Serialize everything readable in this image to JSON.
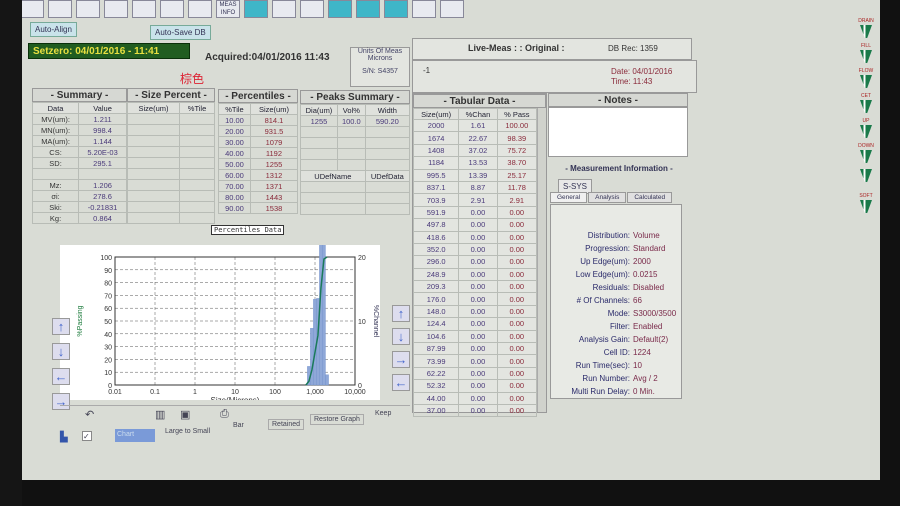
{
  "toolbar": {
    "icons": [
      "grid-icon",
      "list-icon",
      "list2-icon",
      "histogram-icon",
      "table-icon",
      "report-icon",
      "graph-icon",
      "meas-info-icon",
      "window-icon",
      "curve-icon",
      "setzero-icon",
      "sample-icon",
      "plus-minus-icon",
      "stat-icon",
      "disabled-icon",
      "print-icon"
    ],
    "meas_info_label": "MEAS INFO"
  },
  "buttons": {
    "auto_align": "Auto-Align",
    "auto_save": "Auto-Save DB"
  },
  "header": {
    "setzero": "Setzero: 04/01/2016 - 11:41",
    "acquired": "Acquired:04/01/2016  11:43",
    "units_label": "Units Of Meas",
    "units_value": "Microns",
    "sn": "S/N: S4357",
    "sample_title": "棕色",
    "live_meas": "Live-Meas : : Original :",
    "db_rec": "DB Rec: 1359",
    "run_id": "-1",
    "date": "Date: 04/01/2016",
    "time": "Time: 11:43"
  },
  "summary": {
    "title": "- Summary -",
    "cols": [
      "Data",
      "Value"
    ],
    "rows": [
      [
        "MV(um):",
        "1.211"
      ],
      [
        "MN(um):",
        "998.4"
      ],
      [
        "MA(um):",
        "1.144"
      ],
      [
        "CS:",
        "5.20E-03"
      ],
      [
        "SD:",
        "295.1"
      ],
      [
        "",
        ""
      ],
      [
        "Mz:",
        "1.206"
      ],
      [
        "σi:",
        "278.6"
      ],
      [
        "Ski:",
        "-0.21831"
      ],
      [
        "Kg:",
        "0.864"
      ]
    ]
  },
  "size_percent": {
    "title": "- Size Percent -",
    "cols": [
      "Size(um)",
      "%Tile"
    ]
  },
  "percentiles": {
    "title": "- Percentiles -",
    "cols": [
      "%Tile",
      "Size(um)"
    ],
    "rows": [
      [
        "10.00",
        "814.1"
      ],
      [
        "20.00",
        "931.5"
      ],
      [
        "30.00",
        "1079"
      ],
      [
        "40.00",
        "1192"
      ],
      [
        "50.00",
        "1255"
      ],
      [
        "60.00",
        "1312"
      ],
      [
        "70.00",
        "1371"
      ],
      [
        "80.00",
        "1443"
      ],
      [
        "90.00",
        "1538"
      ]
    ],
    "tooltip": "Percentiles Data"
  },
  "peaks": {
    "title": "- Peaks Summary -",
    "cols": [
      "Dia(um)",
      "Vol%",
      "Width"
    ],
    "rows": [
      [
        "1255",
        "100.0",
        "590.20"
      ]
    ],
    "udef_cols": [
      "UDefName",
      "UDefData"
    ]
  },
  "tabular": {
    "title": "- Tabular Data -",
    "cols": [
      "Size(um)",
      "%Chan",
      "% Pass"
    ],
    "rows": [
      [
        "2000",
        "1.61",
        "100.00"
      ],
      [
        "1674",
        "22.67",
        "98.39"
      ],
      [
        "1408",
        "37.02",
        "75.72"
      ],
      [
        "1184",
        "13.53",
        "38.70"
      ],
      [
        "995.5",
        "13.39",
        "25.17"
      ],
      [
        "837.1",
        "8.87",
        "11.78"
      ],
      [
        "703.9",
        "2.91",
        "2.91"
      ],
      [
        "591.9",
        "0.00",
        "0.00"
      ],
      [
        "497.8",
        "0.00",
        "0.00"
      ],
      [
        "418.6",
        "0.00",
        "0.00"
      ],
      [
        "352.0",
        "0.00",
        "0.00"
      ],
      [
        "296.0",
        "0.00",
        "0.00"
      ],
      [
        "248.9",
        "0.00",
        "0.00"
      ],
      [
        "209.3",
        "0.00",
        "0.00"
      ],
      [
        "176.0",
        "0.00",
        "0.00"
      ],
      [
        "148.0",
        "0.00",
        "0.00"
      ],
      [
        "124.4",
        "0.00",
        "0.00"
      ],
      [
        "104.6",
        "0.00",
        "0.00"
      ],
      [
        "87.99",
        "0.00",
        "0.00"
      ],
      [
        "73.99",
        "0.00",
        "0.00"
      ],
      [
        "62.22",
        "0.00",
        "0.00"
      ],
      [
        "52.32",
        "0.00",
        "0.00"
      ],
      [
        "44.00",
        "0.00",
        "0.00"
      ],
      [
        "37.00",
        "0.00",
        "0.00"
      ]
    ]
  },
  "notes": {
    "title": "- Notes -"
  },
  "measurement": {
    "title": "- Measurement Information -",
    "sys_tab": "S-SYS",
    "tabs": [
      "General",
      "Analysis",
      "Calculated"
    ],
    "rows": [
      [
        "Distribution:",
        "Volume"
      ],
      [
        "Progression:",
        "Standard"
      ],
      [
        "Up Edge(um):",
        "2000"
      ],
      [
        "Low Edge(um):",
        "0.0215"
      ],
      [
        "Residuals:",
        "Disabled"
      ],
      [
        "# Of Channels:",
        "66"
      ],
      [
        "Mode:",
        "S3000/3500"
      ],
      [
        "Filter:",
        "Enabled"
      ],
      [
        "Analysis Gain:",
        "Default(2)"
      ],
      [
        "Cell ID:",
        "1224"
      ],
      [
        "Run Time(sec):",
        "10"
      ],
      [
        "Run Number:",
        "Avg /   2"
      ],
      [
        "Multi Run Delay:",
        "0 Min."
      ]
    ]
  },
  "chart_data": {
    "type": "bar+line",
    "xlabel": "Size(Microns)",
    "ylabel": "%Passing",
    "y2label": "%Channel",
    "xscale": "log",
    "xlim": [
      0.01,
      10000
    ],
    "ylim": [
      0,
      100
    ],
    "y2lim": [
      0,
      20
    ],
    "grid": true,
    "x_ticks": [
      "0.01",
      "0.1",
      "1",
      "10",
      "100",
      "1,000",
      "10,000"
    ],
    "y_ticks": [
      "0",
      "10",
      "20",
      "30",
      "40",
      "50",
      "60",
      "70",
      "80",
      "90",
      "100"
    ],
    "y2_ticks": [
      "0",
      "10",
      "20"
    ],
    "size": [
      2000,
      1674,
      1408,
      1184,
      995.5,
      837.1,
      703.9,
      591.9
    ],
    "pct_chan": [
      1.61,
      22.67,
      37.02,
      13.53,
      13.39,
      8.87,
      2.91,
      0
    ],
    "pct_pass": [
      100,
      98.39,
      75.72,
      38.7,
      25.17,
      11.78,
      2.91,
      0
    ],
    "colors": {
      "bars": "#8fa8d8",
      "line": "#1a7a5a"
    }
  },
  "graph_toolbar": {
    "order": "Large to Small",
    "type": "Bar",
    "mode": "Retained",
    "restore": "Restore Graph",
    "keep": "Keep",
    "select_value": "Chart"
  },
  "side_icons": [
    "DRAIN",
    "FILL",
    "FLOW",
    "CET",
    "UP",
    "DOWN",
    "",
    "SOFT"
  ]
}
